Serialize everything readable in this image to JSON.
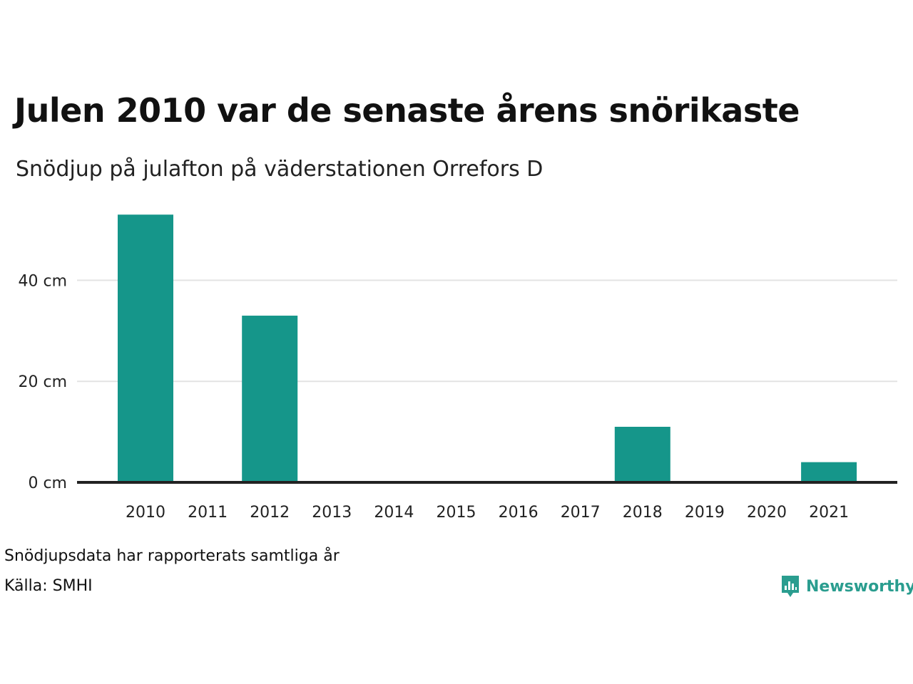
{
  "chart_data": {
    "type": "bar",
    "title": "Julen 2010 var de senaste årens snörikaste",
    "subtitle": "Snödjup på julafton på väderstationen Orrefors D",
    "categories": [
      "2010",
      "2011",
      "2012",
      "2013",
      "2014",
      "2015",
      "2016",
      "2017",
      "2018",
      "2019",
      "2020",
      "2021"
    ],
    "values": [
      53,
      0,
      33,
      0,
      0,
      0,
      0,
      0,
      11,
      0,
      0,
      4
    ],
    "unit": "cm",
    "yticks": [
      0,
      20,
      40
    ],
    "ytick_labels": [
      "0 cm",
      "20 cm",
      "40 cm"
    ],
    "ylim": [
      0,
      56
    ],
    "grid": true,
    "bar_color": "#15968a"
  },
  "footer": {
    "note": "Snödjupsdata har rapporterats samtliga år",
    "source": "Källa: SMHI",
    "brand": "Newsworthy",
    "brand_icon": "bar-chart-speech-bubble-icon",
    "brand_color": "#2a9d8f"
  }
}
